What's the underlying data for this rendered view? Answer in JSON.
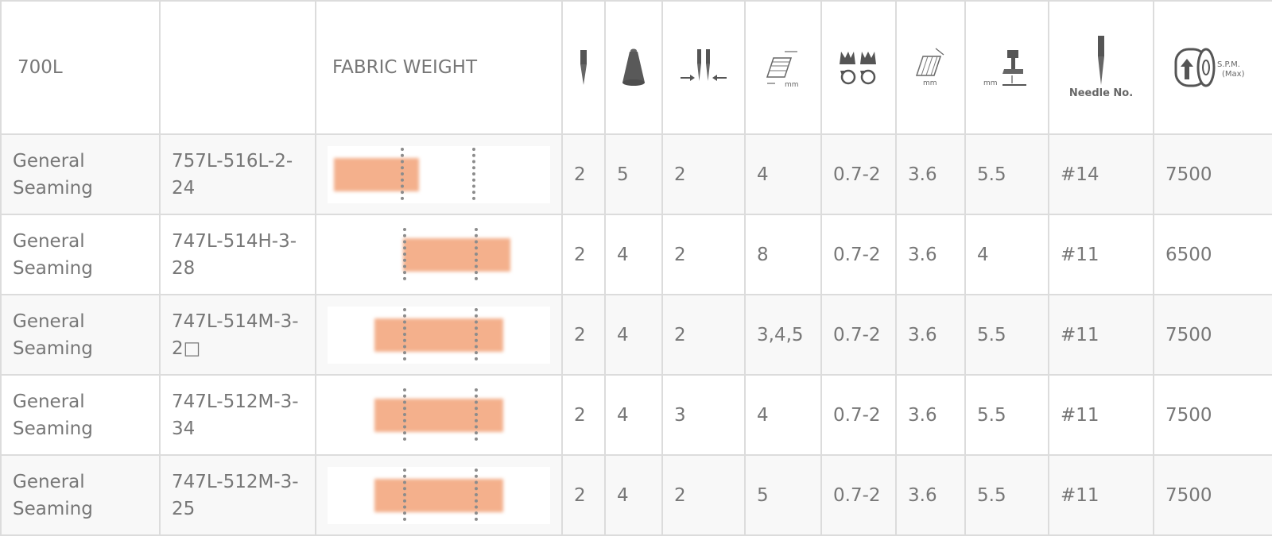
{
  "header": {
    "series": "700L",
    "model_col": "",
    "fabric_weight": "FABRIC WEIGHT",
    "icon_columns": [
      "needle-icon",
      "thread-cone-icon",
      "needle-distance-icon",
      "stitch-width-icon",
      "differential-feed-icon",
      "stitch-length-icon",
      "presser-foot-lift-icon",
      "needle-number-icon",
      "spm-icon"
    ],
    "icon_texts": {
      "mm": "mm",
      "needle_no": "Needle No.",
      "spm": "S.P.M.",
      "max": "(Max)"
    }
  },
  "rows": [
    {
      "application": "General Seaming",
      "model": "757L-516L-2-24",
      "fabric_weight": {
        "bar_start": 0.03,
        "bar_end": 0.41,
        "ticks": [
          0.33,
          0.65
        ]
      },
      "needles": "2",
      "threads": "5",
      "needle_distance": "2",
      "stitch_width": "4",
      "differential_feed": "0.7-2",
      "stitch_length": "3.6",
      "presser_lift": "5.5",
      "needle_no": "#14",
      "spm": "7500"
    },
    {
      "application": "General Seaming",
      "model": "747L-514H-3-28",
      "fabric_weight": {
        "bar_start": 0.34,
        "bar_end": 0.82,
        "ticks": [
          0.34,
          0.66
        ]
      },
      "needles": "2",
      "threads": "4",
      "needle_distance": "2",
      "stitch_width": "8",
      "differential_feed": "0.7-2",
      "stitch_length": "3.6",
      "presser_lift": "4",
      "needle_no": "#11",
      "spm": "6500"
    },
    {
      "application": "General Seaming",
      "model": "747L-514M-3-2□",
      "fabric_weight": {
        "bar_start": 0.21,
        "bar_end": 0.79,
        "ticks": [
          0.34,
          0.66
        ]
      },
      "needles": "2",
      "threads": "4",
      "needle_distance": "2",
      "stitch_width": "3,4,5",
      "differential_feed": "0.7-2",
      "stitch_length": "3.6",
      "presser_lift": "5.5",
      "needle_no": "#11",
      "spm": "7500"
    },
    {
      "application": "General Seaming",
      "model": "747L-512M-3-34",
      "fabric_weight": {
        "bar_start": 0.21,
        "bar_end": 0.79,
        "ticks": [
          0.34,
          0.66
        ]
      },
      "needles": "2",
      "threads": "4",
      "needle_distance": "3",
      "stitch_width": "4",
      "differential_feed": "0.7-2",
      "stitch_length": "3.6",
      "presser_lift": "5.5",
      "needle_no": "#11",
      "spm": "7500"
    },
    {
      "application": "General Seaming",
      "model": "747L-512M-3-25",
      "fabric_weight": {
        "bar_start": 0.21,
        "bar_end": 0.79,
        "ticks": [
          0.34,
          0.66
        ]
      },
      "needles": "2",
      "threads": "4",
      "needle_distance": "2",
      "stitch_width": "5",
      "differential_feed": "0.7-2",
      "stitch_length": "3.6",
      "presser_lift": "5.5",
      "needle_no": "#11",
      "spm": "7500"
    }
  ],
  "colors": {
    "fabric_bar": "#f4b08c",
    "border": "#dcdcdc",
    "text": "#777777",
    "row_alt": "#f8f8f8"
  }
}
